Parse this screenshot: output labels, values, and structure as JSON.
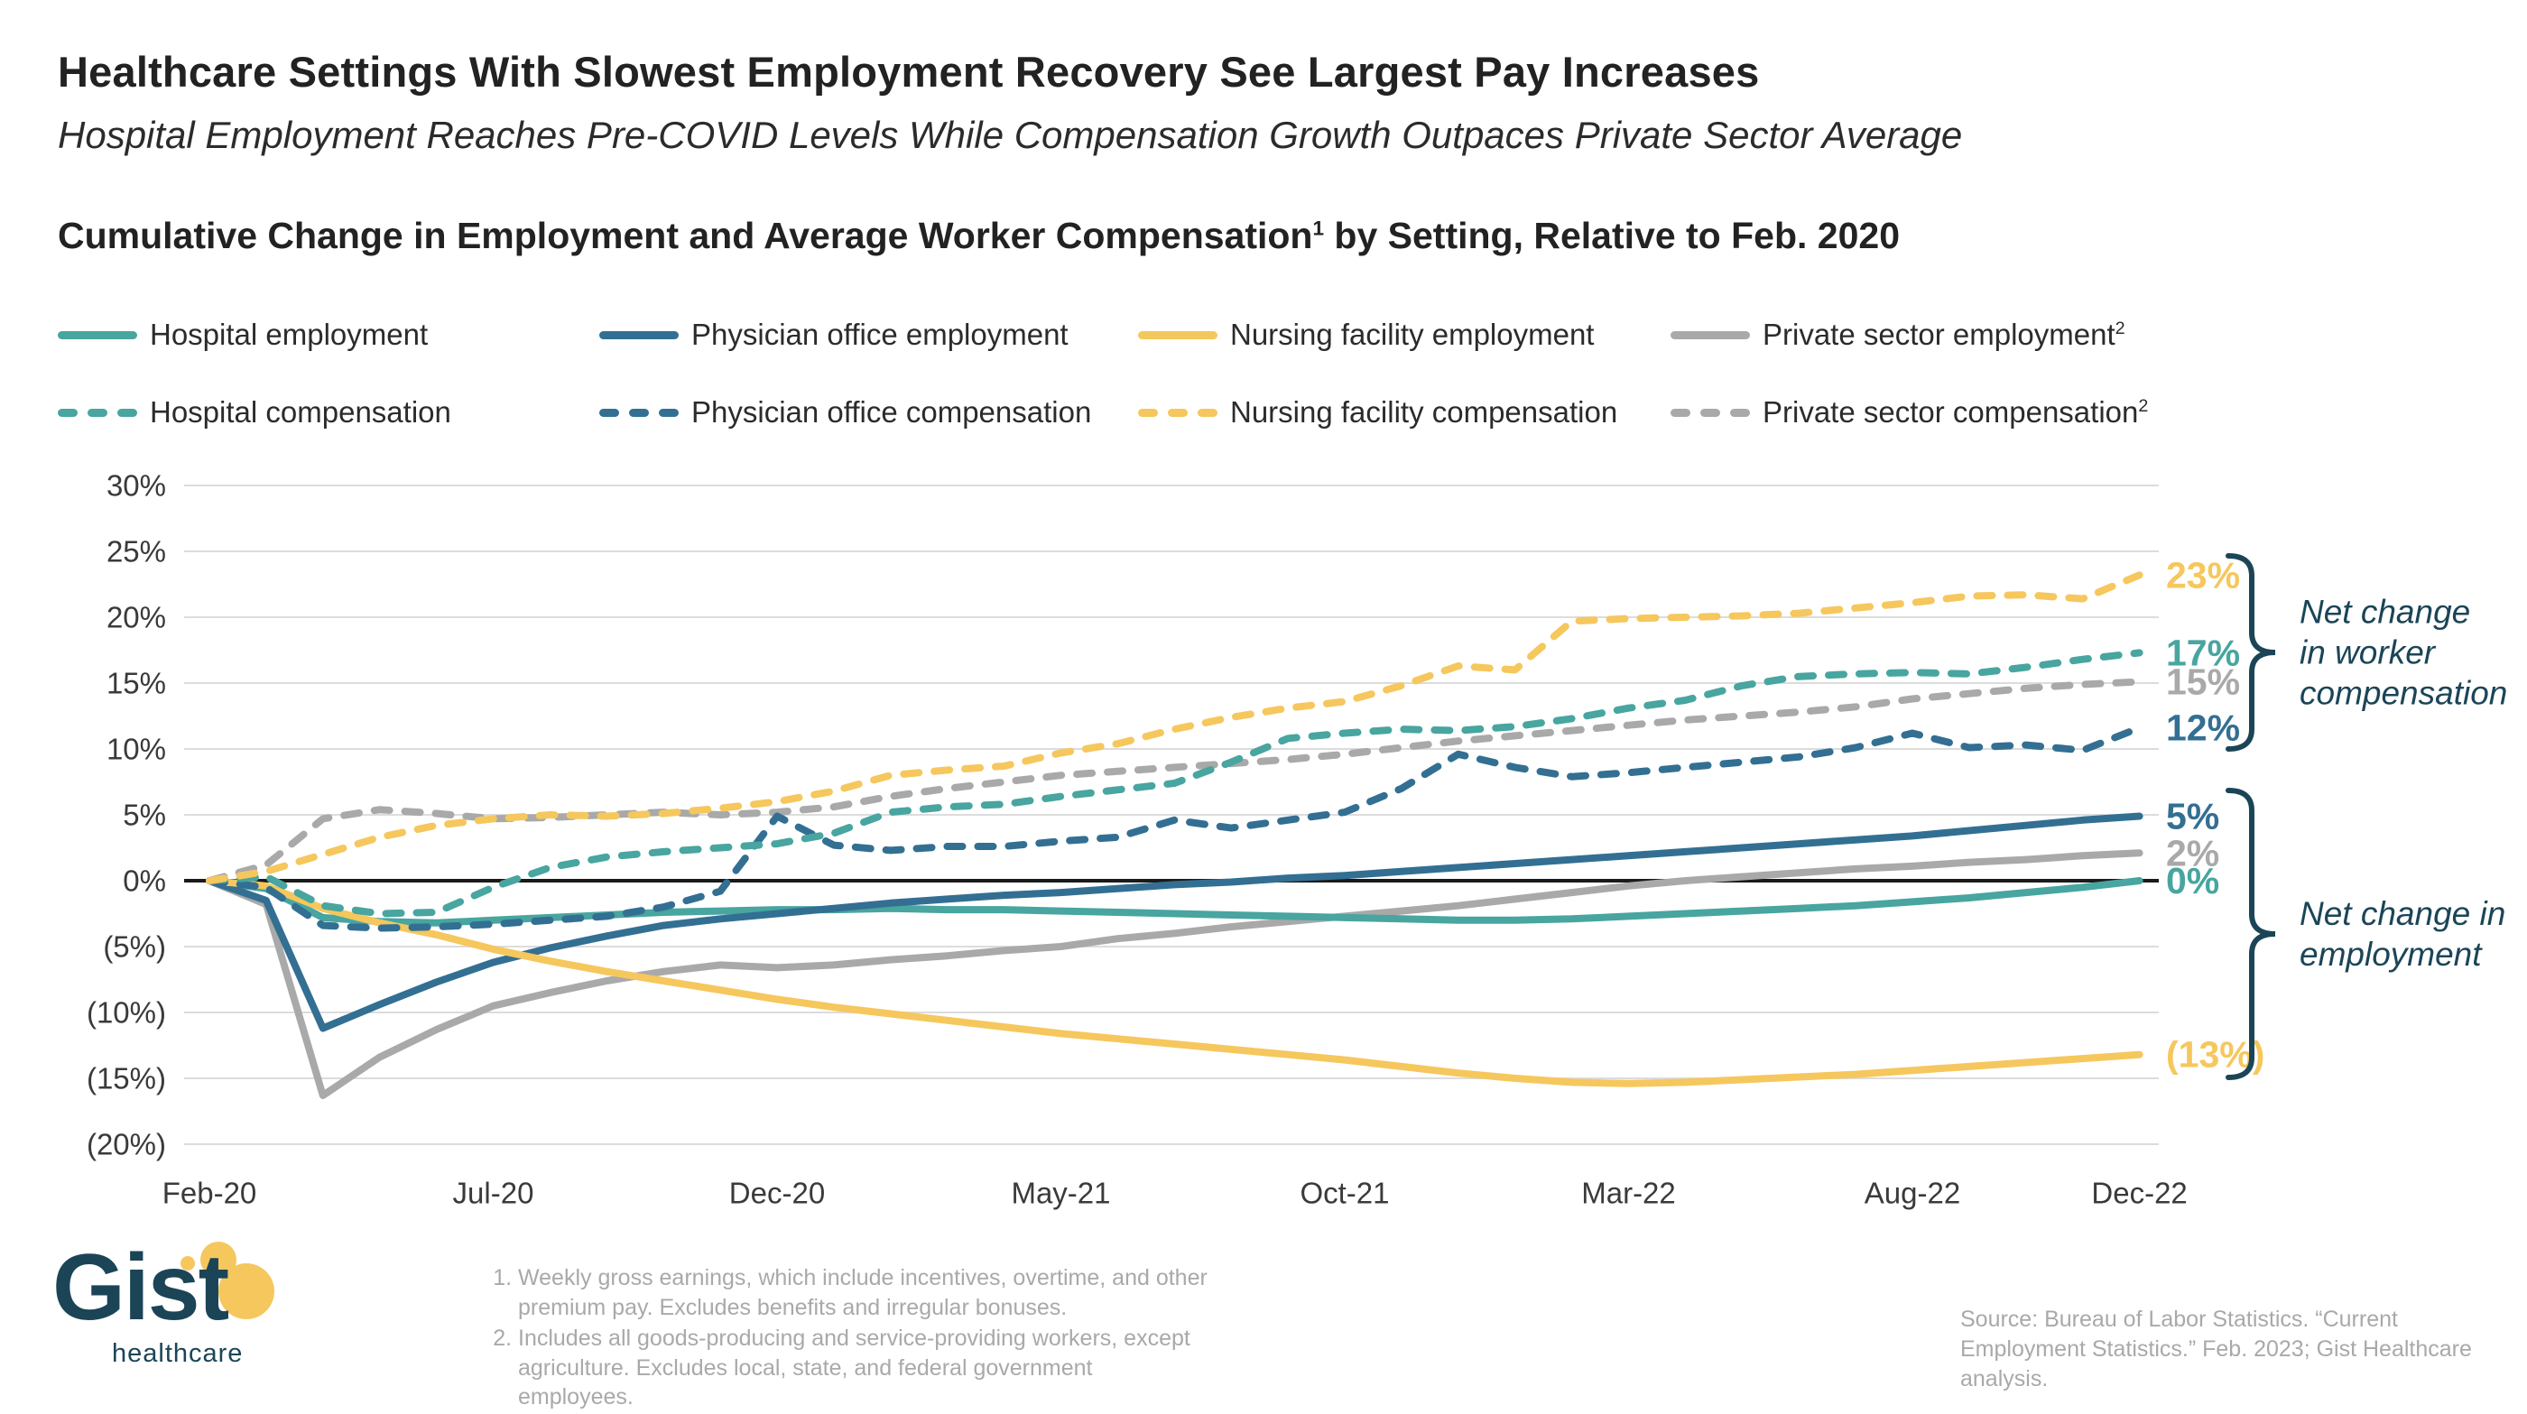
{
  "header": {
    "title": "Healthcare Settings With Slowest Employment Recovery See Largest Pay Increases",
    "subtitle": "Hospital Employment Reaches Pre-COVID Levels While Compensation Growth Outpaces Private Sector Average",
    "chart_heading": {
      "pre": "Cumulative Change in Employment and Average Worker Compensation",
      "sup": "1",
      "post": " by Setting, Relative to Feb. 2020"
    }
  },
  "colors": {
    "teal": "#48A59F",
    "blue": "#336F92",
    "yellow": "#F5C75D",
    "gray": "#A9A9A9",
    "navy": "#1B4557",
    "grid": "#DCDCDC",
    "zero_line": "#1A1A1A",
    "axis_text": "#3A3A3A",
    "footnote_gray": "#A9A9A9"
  },
  "legend": {
    "items": [
      {
        "label": "Hospital employment",
        "sup": "",
        "color": "#48A59F",
        "dashed": false
      },
      {
        "label": "Physician office employment",
        "sup": "",
        "color": "#336F92",
        "dashed": false
      },
      {
        "label": "Nursing facility employment",
        "sup": "",
        "color": "#F5C75D",
        "dashed": false
      },
      {
        "label": "Private sector employment",
        "sup": "2",
        "color": "#A9A9A9",
        "dashed": false
      },
      {
        "label": "Hospital compensation",
        "sup": "",
        "color": "#48A59F",
        "dashed": true
      },
      {
        "label": "Physician office compensation",
        "sup": "",
        "color": "#336F92",
        "dashed": true
      },
      {
        "label": "Nursing facility compensation",
        "sup": "",
        "color": "#F5C75D",
        "dashed": true
      },
      {
        "label": "Private sector compensation",
        "sup": "2",
        "color": "#A9A9A9",
        "dashed": true
      }
    ]
  },
  "chart_data": {
    "type": "line",
    "title": "Cumulative Change in Employment and Average Worker Compensation by Setting, Relative to Feb. 2020",
    "x_range_note": "Monthly, Feb 2020 through Dec 2022 (35 points per series)",
    "ylim": [
      -20,
      30
    ],
    "grid": "horizontal gridlines every 5%, black line at 0%",
    "legend_position": "above chart, two rows (solid = employment, dashed = compensation)",
    "y_ticks": [
      {
        "value": 30,
        "label": "30%"
      },
      {
        "value": 25,
        "label": "25%"
      },
      {
        "value": 20,
        "label": "20%"
      },
      {
        "value": 15,
        "label": "15%"
      },
      {
        "value": 10,
        "label": "10%"
      },
      {
        "value": 5,
        "label": "5%"
      },
      {
        "value": 0,
        "label": "0%"
      },
      {
        "value": -5,
        "label": "(5%)"
      },
      {
        "value": -10,
        "label": "(10%)"
      },
      {
        "value": -15,
        "label": "(15%)"
      },
      {
        "value": -20,
        "label": "(20%)"
      }
    ],
    "x_ticks": [
      {
        "index": 0,
        "label": "Feb-20"
      },
      {
        "index": 5,
        "label": "Jul-20"
      },
      {
        "index": 10,
        "label": "Dec-20"
      },
      {
        "index": 15,
        "label": "May-21"
      },
      {
        "index": 20,
        "label": "Oct-21"
      },
      {
        "index": 25,
        "label": "Mar-22"
      },
      {
        "index": 30,
        "label": "Aug-22"
      },
      {
        "index": 34,
        "label": "Dec-22"
      }
    ],
    "series": [
      {
        "name": "private-sector-employment",
        "display": "Private sector employment",
        "color": "#A9A9A9",
        "dashed": false,
        "end_label": "2%",
        "values": [
          0,
          -1.8,
          -16.3,
          -13.4,
          -11.3,
          -9.5,
          -8.5,
          -7.6,
          -6.9,
          -6.4,
          -6.6,
          -6.4,
          -6.0,
          -5.7,
          -5.3,
          -5.0,
          -4.4,
          -4.0,
          -3.5,
          -3.1,
          -2.7,
          -2.3,
          -1.9,
          -1.4,
          -0.9,
          -0.4,
          0.0,
          0.3,
          0.6,
          0.9,
          1.1,
          1.4,
          1.6,
          1.9,
          2.1
        ]
      },
      {
        "name": "hospital-employment",
        "display": "Hospital employment",
        "color": "#48A59F",
        "dashed": false,
        "end_label": "0%",
        "values": [
          0,
          -0.6,
          -2.8,
          -3.1,
          -3.2,
          -3.0,
          -2.8,
          -2.6,
          -2.4,
          -2.3,
          -2.2,
          -2.2,
          -2.1,
          -2.2,
          -2.2,
          -2.3,
          -2.4,
          -2.5,
          -2.6,
          -2.7,
          -2.8,
          -2.9,
          -3.0,
          -3.0,
          -2.9,
          -2.7,
          -2.5,
          -2.3,
          -2.1,
          -1.9,
          -1.6,
          -1.3,
          -0.9,
          -0.5,
          0.0
        ]
      },
      {
        "name": "physician-office-employment",
        "display": "Physician office employment",
        "color": "#336F92",
        "dashed": false,
        "end_label": "5%",
        "values": [
          0,
          -1.5,
          -11.2,
          -9.4,
          -7.7,
          -6.2,
          -5.1,
          -4.2,
          -3.4,
          -2.9,
          -2.5,
          -2.1,
          -1.7,
          -1.4,
          -1.1,
          -0.9,
          -0.6,
          -0.3,
          -0.1,
          0.2,
          0.4,
          0.7,
          1.0,
          1.3,
          1.6,
          1.9,
          2.2,
          2.5,
          2.8,
          3.1,
          3.4,
          3.8,
          4.2,
          4.6,
          4.9
        ]
      },
      {
        "name": "nursing-facility-employment",
        "display": "Nursing facility employment",
        "color": "#F5C75D",
        "dashed": false,
        "end_label": "(13%)",
        "values": [
          0,
          -0.4,
          -2.1,
          -3.2,
          -4.1,
          -5.2,
          -6.1,
          -6.9,
          -7.6,
          -8.3,
          -9.0,
          -9.6,
          -10.1,
          -10.6,
          -11.1,
          -11.6,
          -12.0,
          -12.4,
          -12.8,
          -13.2,
          -13.6,
          -14.1,
          -14.6,
          -15.0,
          -15.3,
          -15.4,
          -15.3,
          -15.1,
          -14.9,
          -14.7,
          -14.4,
          -14.1,
          -13.8,
          -13.5,
          -13.2
        ]
      },
      {
        "name": "private-sector-compensation",
        "display": "Private sector compensation",
        "color": "#A9A9A9",
        "dashed": true,
        "end_label": "15%",
        "values": [
          0,
          1.2,
          4.7,
          5.4,
          5.1,
          4.7,
          4.8,
          5.0,
          5.2,
          5.0,
          5.2,
          5.6,
          6.4,
          7.0,
          7.5,
          8.0,
          8.3,
          8.6,
          8.9,
          9.2,
          9.6,
          10.1,
          10.6,
          11.0,
          11.4,
          11.8,
          12.2,
          12.5,
          12.8,
          13.2,
          13.8,
          14.2,
          14.6,
          14.9,
          15.1
        ]
      },
      {
        "name": "physician-office-compensation",
        "display": "Physician office compensation",
        "color": "#336F92",
        "dashed": true,
        "end_label": "12%",
        "values": [
          0,
          -0.5,
          -3.4,
          -3.6,
          -3.5,
          -3.3,
          -3.0,
          -2.7,
          -2.0,
          -0.8,
          4.9,
          2.7,
          2.3,
          2.6,
          2.6,
          3.0,
          3.3,
          4.6,
          4.0,
          4.6,
          5.2,
          7.0,
          9.6,
          8.6,
          7.9,
          8.2,
          8.6,
          9.0,
          9.4,
          10.1,
          11.2,
          10.1,
          10.3,
          9.9,
          11.6
        ]
      },
      {
        "name": "hospital-compensation",
        "display": "Hospital compensation",
        "color": "#48A59F",
        "dashed": true,
        "end_label": "17%",
        "values": [
          0,
          0.3,
          -1.9,
          -2.5,
          -2.4,
          -0.5,
          1.0,
          1.8,
          2.2,
          2.5,
          2.8,
          3.6,
          5.2,
          5.6,
          5.8,
          6.4,
          6.9,
          7.4,
          9.0,
          10.8,
          11.2,
          11.5,
          11.4,
          11.7,
          12.3,
          13.1,
          13.7,
          14.8,
          15.5,
          15.7,
          15.8,
          15.7,
          16.2,
          16.8,
          17.3
        ]
      },
      {
        "name": "nursing-facility-compensation",
        "display": "Nursing facility compensation",
        "color": "#F5C75D",
        "dashed": true,
        "end_label": "23%",
        "values": [
          0,
          0.7,
          2.0,
          3.3,
          4.2,
          4.7,
          5.0,
          4.9,
          5.1,
          5.5,
          6.0,
          6.8,
          8.0,
          8.4,
          8.7,
          9.7,
          10.4,
          11.5,
          12.4,
          13.1,
          13.6,
          14.8,
          16.3,
          16.0,
          19.7,
          19.9,
          20.0,
          20.1,
          20.3,
          20.7,
          21.1,
          21.6,
          21.7,
          21.4,
          23.2
        ]
      }
    ],
    "annotations": [
      {
        "id": "compensation-bracket",
        "lines": [
          "Net change",
          "in worker",
          "compensation"
        ]
      },
      {
        "id": "employment-bracket",
        "lines": [
          "Net change in",
          "employment"
        ]
      }
    ]
  },
  "footnotes": [
    "Weekly gross earnings, which include incentives, overtime, and other premium pay. Excludes benefits and irregular bonuses.",
    "Includes all goods-producing and service-providing workers, except agriculture. Excludes local, state, and federal government employees."
  ],
  "source": "Source: Bureau of Labor Statistics. “Current Employment Statistics.” Feb. 2023; Gist Healthcare analysis.",
  "logo": {
    "word": "Gist",
    "sub": "healthcare"
  }
}
